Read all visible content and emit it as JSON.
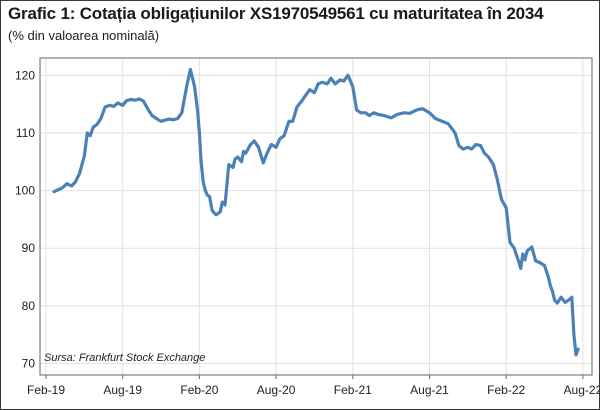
{
  "chart_data": {
    "type": "line",
    "title": "Grafic 1: Cotația obligațiunilor XS1970549561 cu maturitatea în 2034",
    "subtitle": "(% din valoarea nominală)",
    "source": "Sursa: Frankfurt Stock Exchange",
    "xlabel": "",
    "ylabel": "",
    "ylim": [
      68,
      123
    ],
    "y_ticks": [
      70,
      80,
      90,
      100,
      110,
      120
    ],
    "x_ticks": [
      "Feb-19",
      "Aug-19",
      "Feb-20",
      "Aug-20",
      "Feb-21",
      "Aug-21",
      "Feb-22",
      "Aug-22"
    ],
    "grid": true,
    "line_color": "#4a82b8",
    "series": [
      {
        "x": [
          "2019-02-20",
          "2019-03-01",
          "2019-03-10",
          "2019-03-20",
          "2019-04-01",
          "2019-04-10",
          "2019-04-20",
          "2019-05-01",
          "2019-05-08",
          "2019-05-15",
          "2019-05-22",
          "2019-06-01",
          "2019-06-10",
          "2019-06-20",
          "2019-07-01",
          "2019-07-10",
          "2019-07-20",
          "2019-08-01",
          "2019-08-10",
          "2019-08-20",
          "2019-09-01",
          "2019-09-10",
          "2019-09-20",
          "2019-10-01",
          "2019-10-10",
          "2019-10-20",
          "2019-11-01",
          "2019-11-10",
          "2019-11-20",
          "2019-12-01",
          "2019-12-10",
          "2019-12-20",
          "2020-01-01",
          "2020-01-10",
          "2020-01-20",
          "2020-01-27",
          "2020-02-01",
          "2020-02-05",
          "2020-02-10",
          "2020-02-15",
          "2020-02-20",
          "2020-02-25",
          "2020-03-01",
          "2020-03-10",
          "2020-03-20",
          "2020-03-25",
          "2020-04-01",
          "2020-04-10",
          "2020-04-20",
          "2020-04-25",
          "2020-05-01",
          "2020-05-10",
          "2020-05-15",
          "2020-05-20",
          "2020-06-01",
          "2020-06-10",
          "2020-06-20",
          "2020-07-01",
          "2020-07-10",
          "2020-07-20",
          "2020-08-01",
          "2020-08-10",
          "2020-08-20",
          "2020-09-01",
          "2020-09-10",
          "2020-09-20",
          "2020-10-01",
          "2020-10-10",
          "2020-10-20",
          "2020-11-01",
          "2020-11-10",
          "2020-11-20",
          "2020-12-01",
          "2020-12-10",
          "2020-12-20",
          "2021-01-01",
          "2021-01-10",
          "2021-01-20",
          "2021-02-01",
          "2021-02-10",
          "2021-02-20",
          "2021-03-01",
          "2021-03-10",
          "2021-03-20",
          "2021-04-01",
          "2021-04-15",
          "2021-05-01",
          "2021-05-15",
          "2021-06-01",
          "2021-06-15",
          "2021-07-01",
          "2021-07-15",
          "2021-08-01",
          "2021-08-15",
          "2021-09-01",
          "2021-09-15",
          "2021-10-01",
          "2021-10-10",
          "2021-10-20",
          "2021-11-01",
          "2021-11-10",
          "2021-11-20",
          "2021-12-01",
          "2021-12-10",
          "2021-12-20",
          "2022-01-01",
          "2022-01-10",
          "2022-01-20",
          "2022-02-01",
          "2022-02-10",
          "2022-02-20",
          "2022-03-01",
          "2022-03-05",
          "2022-03-10",
          "2022-03-15",
          "2022-03-20",
          "2022-03-25",
          "2022-04-01",
          "2022-04-10",
          "2022-04-20",
          "2022-05-01",
          "2022-05-10",
          "2022-05-15",
          "2022-05-20",
          "2022-05-25",
          "2022-06-01",
          "2022-06-10",
          "2022-06-15",
          "2022-06-20",
          "2022-07-01",
          "2022-07-05",
          "2022-07-10",
          "2022-07-15",
          "2022-07-20"
        ],
        "values": [
          99.8,
          100.2,
          100.5,
          101.2,
          100.8,
          101.5,
          103,
          106,
          110,
          109.5,
          111,
          111.5,
          112.5,
          114.5,
          114.8,
          114.6,
          115.2,
          114.8,
          115.6,
          115.8,
          115.7,
          115.9,
          115.5,
          114,
          113,
          112.5,
          112,
          112.2,
          112.4,
          112.3,
          112.5,
          113.5,
          118,
          121,
          118,
          114,
          110,
          105,
          101.5,
          100,
          99.2,
          99,
          96.5,
          95.8,
          96.3,
          98,
          97.5,
          104.5,
          104,
          105.5,
          105.8,
          105,
          106.8,
          106.5,
          108,
          108.6,
          107.5,
          104.8,
          106.5,
          108,
          107.5,
          109,
          109.5,
          112,
          112,
          114.5,
          115.5,
          116.5,
          117.5,
          117,
          118.5,
          118.8,
          118.5,
          119.5,
          118.5,
          119.2,
          119,
          120,
          118,
          114,
          113.5,
          113.5,
          113,
          113.5,
          113.2,
          113,
          112.6,
          113.2,
          113.5,
          113.4,
          114,
          114.2,
          113.5,
          112.5,
          112,
          111.6,
          110,
          107.8,
          107.2,
          107.5,
          107.2,
          108,
          107.8,
          106.5,
          105.8,
          104.5,
          102,
          98.5,
          97,
          91,
          90,
          87.5,
          86.5,
          89,
          88,
          89.5,
          89.8,
          90.2,
          87.8,
          87.5,
          87,
          85,
          83.5,
          82.5,
          81,
          80.5,
          81.5,
          81,
          80.6,
          81.2,
          81.5,
          75,
          71.5,
          72.5
        ]
      }
    ]
  }
}
